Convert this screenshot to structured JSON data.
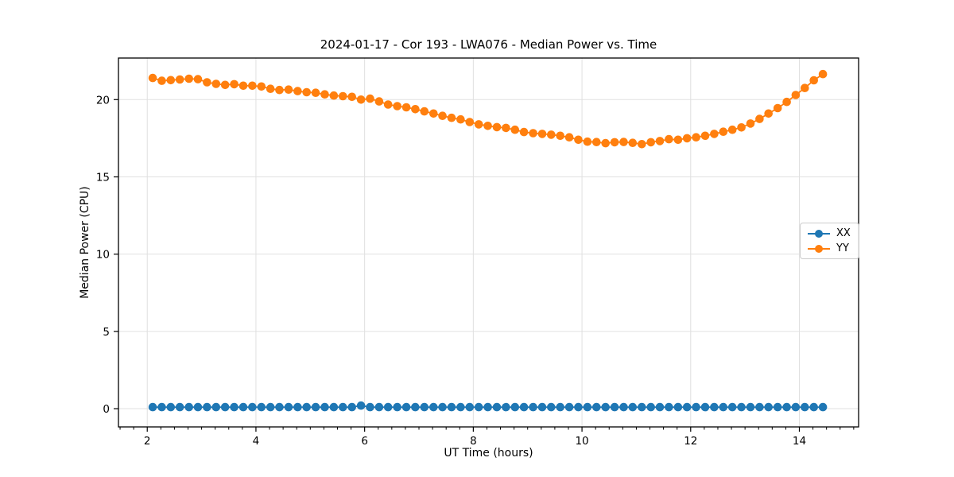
{
  "chart": {
    "title": "2024-01-17 - Cor 193 - LWA076 - Median Power vs. Time",
    "xlabel": "UT Time (hours)",
    "ylabel": "Median Power (CPU)"
  },
  "colors": {
    "series_xx": "#1f77b4",
    "series_yy": "#ff7f0e",
    "grid": "#e0e0e0",
    "frame": "#000000",
    "legend_border": "#cccccc"
  },
  "chart_data": {
    "type": "line",
    "title": "2024-01-17 - Cor 193 - LWA076 - Median Power vs. Time",
    "xlabel": "UT Time (hours)",
    "ylabel": "Median Power (CPU)",
    "xlim": [
      1.47,
      15.09
    ],
    "ylim": [
      -1.18,
      22.69
    ],
    "xticks": [
      2,
      4,
      6,
      8,
      10,
      12,
      14
    ],
    "yticks": [
      0,
      5,
      10,
      15,
      20
    ],
    "x_minor_tick_step": 0.25,
    "x_minor_tick_range": [
      1.5,
      15.0
    ],
    "grid": true,
    "legend_position": "center-right",
    "marker": "circle",
    "x": [
      2.1,
      2.267,
      2.433,
      2.6,
      2.767,
      2.933,
      3.1,
      3.267,
      3.433,
      3.6,
      3.767,
      3.933,
      4.1,
      4.267,
      4.433,
      4.6,
      4.767,
      4.933,
      5.1,
      5.267,
      5.433,
      5.6,
      5.767,
      5.933,
      6.1,
      6.267,
      6.433,
      6.6,
      6.767,
      6.933,
      7.1,
      7.267,
      7.433,
      7.6,
      7.767,
      7.933,
      8.1,
      8.267,
      8.433,
      8.6,
      8.767,
      8.933,
      9.1,
      9.267,
      9.433,
      9.6,
      9.767,
      9.933,
      10.1,
      10.267,
      10.433,
      10.6,
      10.767,
      10.933,
      11.1,
      11.267,
      11.433,
      11.6,
      11.767,
      11.933,
      12.1,
      12.267,
      12.433,
      12.6,
      12.767,
      12.933,
      13.1,
      13.267,
      13.433,
      13.6,
      13.767,
      13.933,
      14.1,
      14.267,
      14.433
    ],
    "series": [
      {
        "name": "XX",
        "color": "#1f77b4",
        "values": [
          0.1,
          0.1,
          0.1,
          0.1,
          0.1,
          0.1,
          0.1,
          0.1,
          0.1,
          0.1,
          0.1,
          0.1,
          0.1,
          0.1,
          0.1,
          0.1,
          0.1,
          0.1,
          0.1,
          0.1,
          0.1,
          0.1,
          0.1,
          0.2,
          0.1,
          0.1,
          0.1,
          0.1,
          0.1,
          0.1,
          0.1,
          0.1,
          0.1,
          0.1,
          0.1,
          0.1,
          0.1,
          0.1,
          0.1,
          0.1,
          0.1,
          0.1,
          0.1,
          0.1,
          0.1,
          0.1,
          0.1,
          0.1,
          0.1,
          0.1,
          0.1,
          0.1,
          0.1,
          0.1,
          0.1,
          0.1,
          0.1,
          0.1,
          0.1,
          0.1,
          0.1,
          0.1,
          0.1,
          0.1,
          0.1,
          0.1,
          0.1,
          0.1,
          0.1,
          0.1,
          0.1,
          0.1,
          0.1,
          0.1,
          0.1
        ]
      },
      {
        "name": "YY",
        "color": "#ff7f0e",
        "values": [
          21.4,
          21.22,
          21.26,
          21.3,
          21.35,
          21.32,
          21.12,
          21.02,
          20.95,
          21.0,
          20.9,
          20.9,
          20.85,
          20.7,
          20.62,
          20.65,
          20.55,
          20.48,
          20.44,
          20.34,
          20.26,
          20.22,
          20.18,
          20.0,
          20.06,
          19.88,
          19.68,
          19.58,
          19.5,
          19.38,
          19.24,
          19.1,
          18.95,
          18.82,
          18.72,
          18.55,
          18.4,
          18.3,
          18.22,
          18.17,
          18.05,
          17.9,
          17.83,
          17.78,
          17.73,
          17.66,
          17.56,
          17.4,
          17.28,
          17.25,
          17.18,
          17.24,
          17.26,
          17.2,
          17.12,
          17.24,
          17.32,
          17.44,
          17.4,
          17.5,
          17.56,
          17.66,
          17.78,
          17.92,
          18.05,
          18.2,
          18.45,
          18.75,
          19.1,
          19.45,
          19.85,
          20.3,
          20.75,
          21.25,
          21.65
        ]
      }
    ]
  }
}
